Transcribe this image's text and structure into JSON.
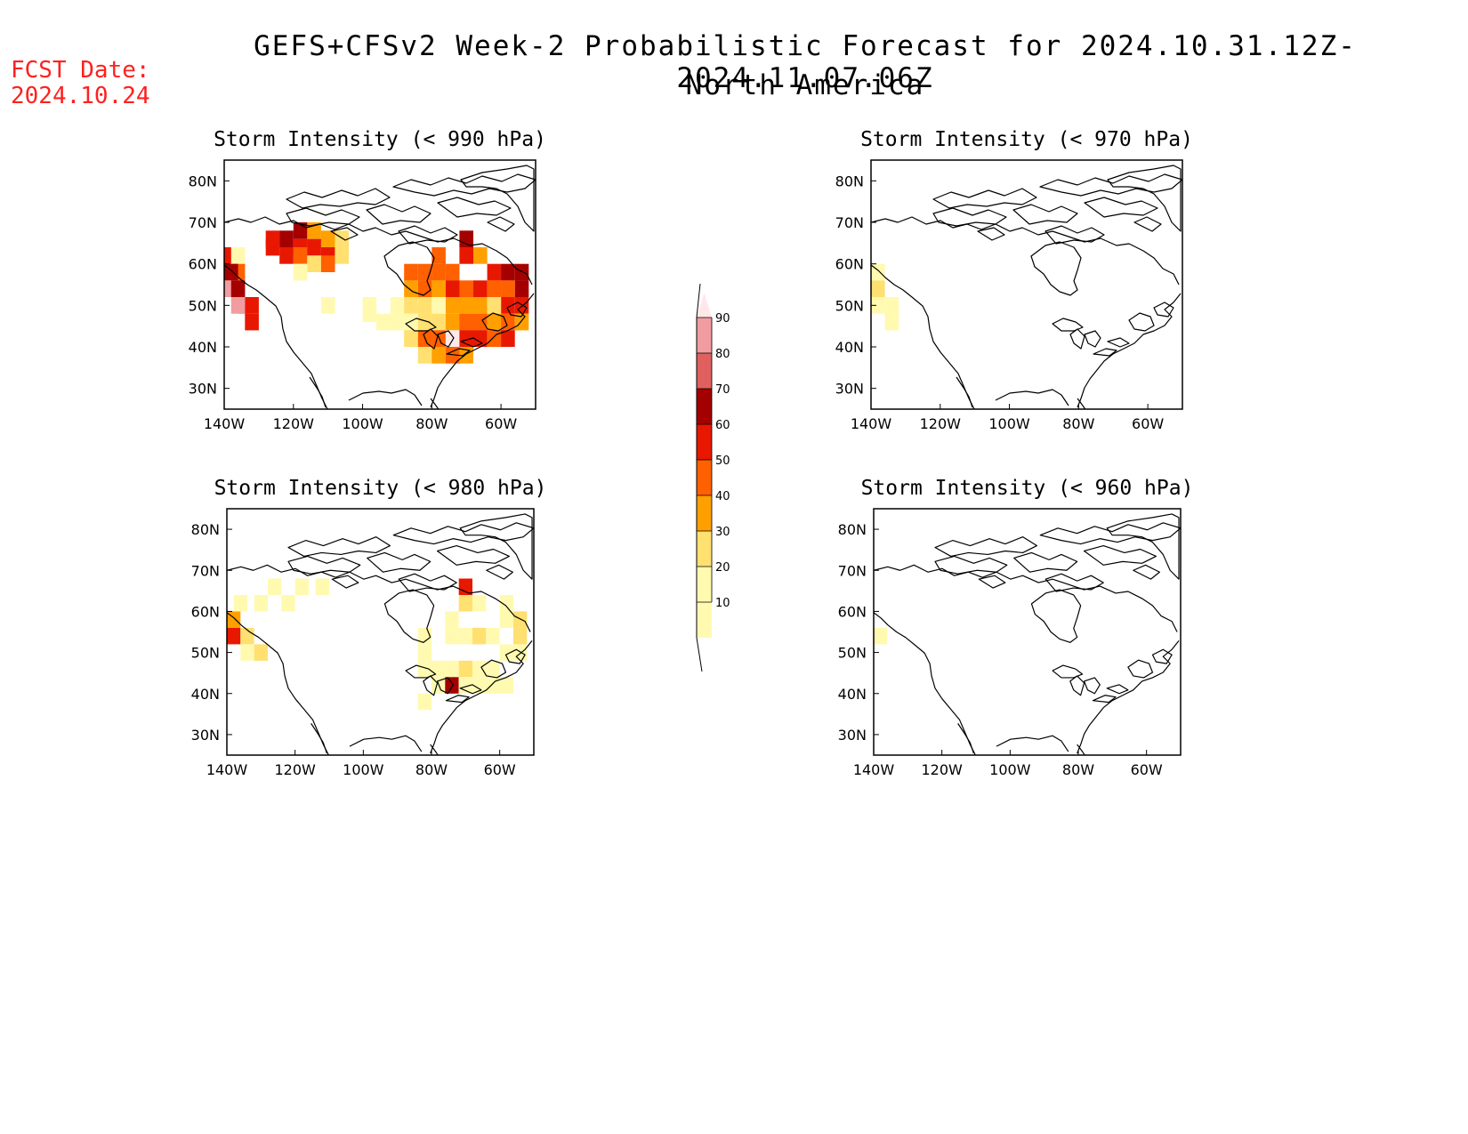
{
  "title": "GEFS+CFSv2 Week-2 Probabilistic Forecast for 2024.10.31.12Z-2024.11.07.06Z",
  "subtitle": "North America",
  "fcst_label": "FCST Date:",
  "fcst_date": "2024.10.24",
  "colors": {
    "prob": [
      "#fffab0",
      "#ffe070",
      "#ffa000",
      "#ff6000",
      "#e81800",
      "#a40000",
      "#e06060",
      "#f09ca0",
      "#ffe8ea"
    ],
    "coast": "#000000"
  },
  "chart_data": {
    "type": "heatmap",
    "colorbar": {
      "levels": [
        10,
        20,
        30,
        40,
        50,
        60,
        70,
        80,
        90
      ],
      "labels": [
        "10",
        "20",
        "30",
        "40",
        "50",
        "60",
        "70",
        "80",
        "90"
      ]
    },
    "axes": {
      "lon_ticks": [
        "140W",
        "120W",
        "100W",
        "80W",
        "60W"
      ],
      "lat_ticks": [
        "80N",
        "70N",
        "60N",
        "50N",
        "40N",
        "30N"
      ],
      "lon_range": [
        -140,
        -50
      ],
      "lat_range": [
        25,
        85
      ]
    },
    "panels": [
      {
        "id": "p990",
        "title": "Storm Intensity (< 990 hPa)",
        "cells": [
          [
            -138,
            62,
            5
          ],
          [
            -136,
            62,
            1
          ],
          [
            -136,
            58,
            4
          ],
          [
            -138,
            58,
            6
          ],
          [
            -138,
            54,
            8
          ],
          [
            -136,
            54,
            6
          ],
          [
            -134,
            50,
            4
          ],
          [
            -132,
            50,
            5
          ],
          [
            -136,
            50,
            8
          ],
          [
            -132,
            46,
            5
          ],
          [
            -126,
            66,
            5
          ],
          [
            -122,
            66,
            6
          ],
          [
            -118,
            68,
            6
          ],
          [
            -114,
            68,
            3
          ],
          [
            -110,
            66,
            3
          ],
          [
            -106,
            66,
            2
          ],
          [
            -118,
            64,
            5
          ],
          [
            -114,
            64,
            5
          ],
          [
            -110,
            62,
            5
          ],
          [
            -118,
            62,
            4
          ],
          [
            -122,
            62,
            5
          ],
          [
            -126,
            64,
            5
          ],
          [
            -114,
            60,
            2
          ],
          [
            -106,
            62,
            2
          ],
          [
            -110,
            60,
            4
          ],
          [
            -118,
            58,
            1
          ],
          [
            -110,
            50,
            1
          ],
          [
            -98,
            48,
            1
          ],
          [
            -98,
            50,
            1
          ],
          [
            -86,
            58,
            4
          ],
          [
            -82,
            58,
            4
          ],
          [
            -78,
            58,
            4
          ],
          [
            -74,
            58,
            4
          ],
          [
            -70,
            62,
            5
          ],
          [
            -70,
            66,
            6
          ],
          [
            -66,
            62,
            3
          ],
          [
            -78,
            62,
            4
          ],
          [
            -82,
            54,
            4
          ],
          [
            -86,
            54,
            3
          ],
          [
            -78,
            54,
            3
          ],
          [
            -74,
            54,
            5
          ],
          [
            -70,
            54,
            4
          ],
          [
            -66,
            54,
            5
          ],
          [
            -62,
            58,
            5
          ],
          [
            -58,
            58,
            6
          ],
          [
            -54,
            58,
            6
          ],
          [
            -54,
            54,
            6
          ],
          [
            -58,
            54,
            4
          ],
          [
            -62,
            54,
            4
          ],
          [
            -66,
            50,
            3
          ],
          [
            -58,
            50,
            5
          ],
          [
            -54,
            50,
            5
          ],
          [
            -90,
            50,
            1
          ],
          [
            -86,
            50,
            2
          ],
          [
            -82,
            50,
            2
          ],
          [
            -78,
            50,
            1
          ],
          [
            -74,
            50,
            3
          ],
          [
            -70,
            50,
            3
          ],
          [
            -62,
            50,
            2
          ],
          [
            -94,
            46,
            1
          ],
          [
            -90,
            46,
            1
          ],
          [
            -86,
            46,
            1
          ],
          [
            -82,
            46,
            2
          ],
          [
            -78,
            46,
            2
          ],
          [
            -74,
            46,
            3
          ],
          [
            -70,
            46,
            4
          ],
          [
            -66,
            46,
            4
          ],
          [
            -62,
            46,
            3
          ],
          [
            -58,
            46,
            4
          ],
          [
            -54,
            46,
            3
          ],
          [
            -86,
            42,
            2
          ],
          [
            -82,
            42,
            4
          ],
          [
            -78,
            42,
            4
          ],
          [
            -74,
            42,
            9
          ],
          [
            -70,
            42,
            5
          ],
          [
            -66,
            42,
            5
          ],
          [
            -62,
            42,
            4
          ],
          [
            -58,
            42,
            5
          ],
          [
            -82,
            38,
            2
          ],
          [
            -78,
            38,
            3
          ],
          [
            -74,
            38,
            4
          ],
          [
            -70,
            38,
            3
          ]
        ]
      },
      {
        "id": "p970",
        "title": "Storm Intensity (< 970 hPa)",
        "cells": [
          [
            -138,
            54,
            2
          ],
          [
            -138,
            50,
            1
          ],
          [
            -134,
            50,
            1
          ],
          [
            -138,
            58,
            1
          ],
          [
            -134,
            46,
            1
          ]
        ]
      },
      {
        "id": "p980",
        "title": "Storm Intensity (< 980 hPa)",
        "cells": [
          [
            -138,
            58,
            3
          ],
          [
            -138,
            54,
            5
          ],
          [
            -134,
            54,
            2
          ],
          [
            -134,
            50,
            1
          ],
          [
            -130,
            50,
            2
          ],
          [
            -136,
            62,
            1
          ],
          [
            -130,
            62,
            1
          ],
          [
            -122,
            62,
            1
          ],
          [
            -126,
            66,
            1
          ],
          [
            -118,
            66,
            1
          ],
          [
            -112,
            66,
            1
          ],
          [
            -74,
            58,
            1
          ],
          [
            -70,
            66,
            5
          ],
          [
            -70,
            62,
            2
          ],
          [
            -66,
            62,
            1
          ],
          [
            -82,
            54,
            1
          ],
          [
            -82,
            50,
            1
          ],
          [
            -74,
            54,
            1
          ],
          [
            -70,
            54,
            1
          ],
          [
            -66,
            54,
            2
          ],
          [
            -62,
            54,
            1
          ],
          [
            -58,
            58,
            1
          ],
          [
            -54,
            58,
            2
          ],
          [
            -58,
            62,
            1
          ],
          [
            -54,
            54,
            2
          ],
          [
            -54,
            50,
            1
          ],
          [
            -58,
            50,
            1
          ],
          [
            -82,
            46,
            1
          ],
          [
            -78,
            46,
            1
          ],
          [
            -74,
            46,
            1
          ],
          [
            -70,
            46,
            2
          ],
          [
            -66,
            46,
            1
          ],
          [
            -62,
            46,
            1
          ],
          [
            -78,
            42,
            1
          ],
          [
            -74,
            42,
            6
          ],
          [
            -70,
            42,
            1
          ],
          [
            -66,
            42,
            1
          ],
          [
            -62,
            42,
            1
          ],
          [
            -58,
            42,
            1
          ],
          [
            -82,
            38,
            1
          ]
        ]
      },
      {
        "id": "p960",
        "title": "Storm Intensity (< 960 hPa)",
        "cells": [
          [
            -138,
            54,
            1
          ]
        ]
      }
    ]
  }
}
